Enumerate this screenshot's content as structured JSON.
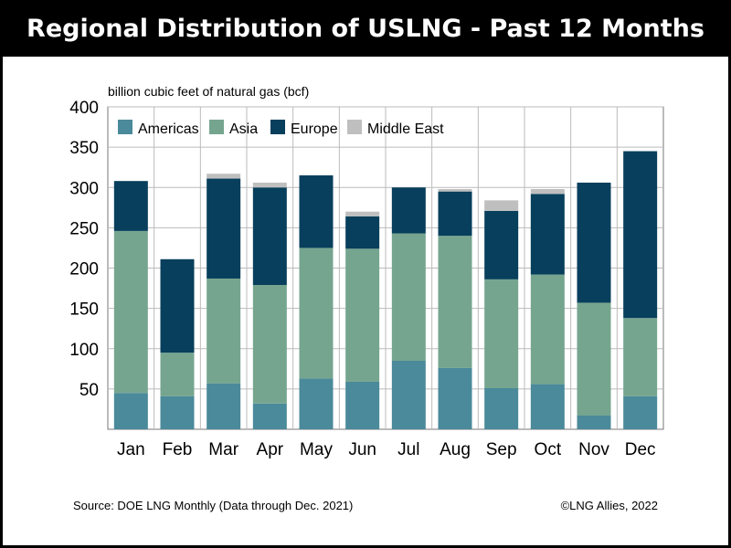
{
  "title": "Regional Distribution of USLNG - Past 12 Months",
  "footer": {
    "source": "Source: DOE LNG Monthly (Data through Dec. 2021)",
    "copyright": "©LNG Allies, 2022"
  },
  "chart_data": {
    "type": "bar",
    "stacked": true,
    "ylabel": "billion cubic feet of natural gas (bcf)",
    "ylim": [
      0,
      400
    ],
    "yticks": [
      50,
      100,
      150,
      200,
      250,
      300,
      350,
      400
    ],
    "grid": true,
    "legend_position": "top-left",
    "categories": [
      "Jan",
      "Feb",
      "Mar",
      "Apr",
      "May",
      "Jun",
      "Jul",
      "Aug",
      "Sep",
      "Oct",
      "Nov",
      "Dec"
    ],
    "series": [
      {
        "name": "Americas",
        "color": "#4a8a9a",
        "values": [
          45,
          41,
          57,
          32,
          63,
          59,
          85,
          76,
          51,
          56,
          17,
          41
        ]
      },
      {
        "name": "Asia",
        "color": "#76a58f",
        "values": [
          201,
          54,
          130,
          147,
          162,
          165,
          158,
          164,
          135,
          136,
          140,
          97
        ]
      },
      {
        "name": "Europe",
        "color": "#073f5c",
        "values": [
          62,
          116,
          124,
          121,
          90,
          40,
          57,
          55,
          85,
          100,
          149,
          207
        ]
      },
      {
        "name": "Middle East",
        "color": "#bfbfbf",
        "values": [
          0,
          0,
          6,
          6,
          0,
          6,
          0,
          3,
          13,
          6,
          0,
          0
        ]
      }
    ]
  }
}
